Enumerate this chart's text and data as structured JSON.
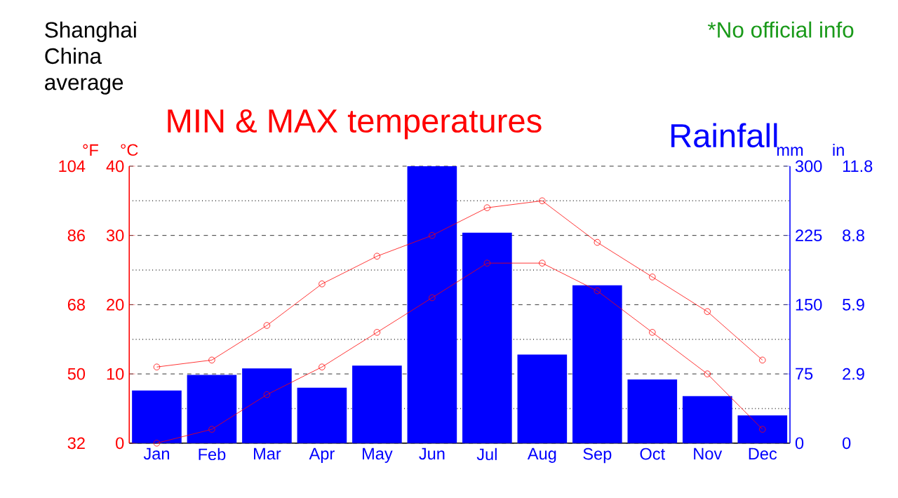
{
  "chart_data": {
    "type": "bar",
    "title": "MIN & MAX temperatures",
    "categories": [
      "Jan",
      "Feb",
      "Mar",
      "Apr",
      "May",
      "Jun",
      "Jul",
      "Aug",
      "Sep",
      "Oct",
      "Nov",
      "Dec"
    ],
    "series": [
      {
        "name": "Rainfall",
        "axis": "y2",
        "color": "#0000ff",
        "values": [
          57,
          74,
          81,
          60,
          84,
          300,
          228,
          96,
          171,
          69,
          51,
          30
        ]
      },
      {
        "type": "line",
        "color": "#ff0000",
        "values": [
          11,
          12,
          17,
          23,
          27,
          30,
          34,
          35,
          29,
          24,
          19,
          12
        ]
      },
      {
        "type": "line",
        "color": "#ff0000",
        "values": [
          0,
          2,
          7,
          11,
          16,
          21,
          26,
          26,
          22,
          16,
          10,
          2
        ]
      }
    ],
    "ylabel": "°C",
    "ylim": [
      0,
      40
    ],
    "yticks": [
      0,
      10,
      20,
      30,
      40
    ],
    "y2label": "mm",
    "y2lim": [
      0,
      300
    ],
    "y2ticks": [
      0,
      75,
      150,
      225,
      300
    ],
    "y3label": "°F",
    "y3lim": [
      32,
      104
    ],
    "y3ticks": [
      32,
      50,
      68,
      86,
      104
    ],
    "grid": "y",
    "marker": "circle",
    "annotations": [
      "Shanghai China average",
      "*No official info",
      "in",
      "0",
      "2.9",
      "5.9",
      "8.8",
      "11.8"
    ]
  }
}
